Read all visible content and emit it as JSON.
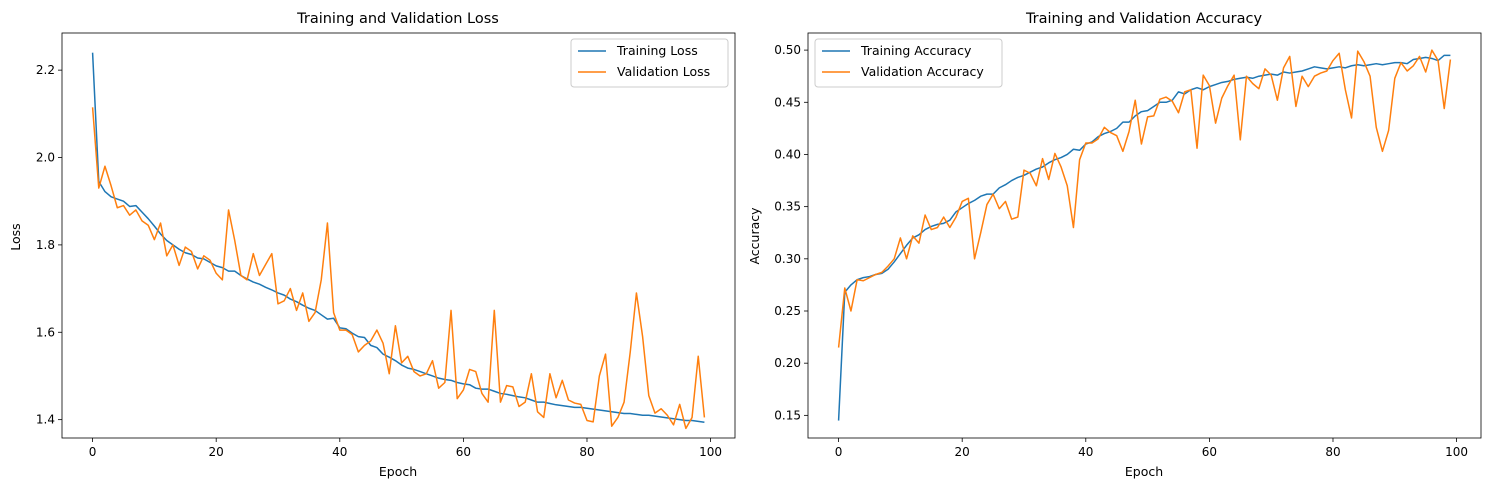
{
  "chart_data": [
    {
      "type": "line",
      "title": "Training and Validation Loss",
      "xlabel": "Epoch",
      "ylabel": "Loss",
      "xlim": [
        -4.95,
        103.95
      ],
      "ylim": [
        1.358,
        2.285
      ],
      "xticks": [
        0,
        20,
        40,
        60,
        80,
        100
      ],
      "yticks": [
        1.4,
        1.6,
        1.8,
        2.0,
        2.2
      ],
      "ytick_format": 1,
      "grid": false,
      "legend": "top-right",
      "series": [
        {
          "name": "Training Loss",
          "color": "#1f77b4",
          "values": [
            2.24,
            1.945,
            1.922,
            1.91,
            1.905,
            1.9,
            1.888,
            1.89,
            1.875,
            1.86,
            1.843,
            1.825,
            1.81,
            1.8,
            1.79,
            1.782,
            1.778,
            1.77,
            1.768,
            1.76,
            1.752,
            1.748,
            1.74,
            1.74,
            1.73,
            1.722,
            1.715,
            1.71,
            1.703,
            1.697,
            1.69,
            1.685,
            1.676,
            1.67,
            1.662,
            1.655,
            1.65,
            1.64,
            1.63,
            1.632,
            1.61,
            1.608,
            1.598,
            1.59,
            1.588,
            1.57,
            1.565,
            1.55,
            1.543,
            1.535,
            1.525,
            1.518,
            1.515,
            1.51,
            1.505,
            1.5,
            1.495,
            1.492,
            1.49,
            1.485,
            1.482,
            1.48,
            1.472,
            1.47,
            1.47,
            1.465,
            1.46,
            1.458,
            1.455,
            1.452,
            1.45,
            1.445,
            1.44,
            1.44,
            1.437,
            1.434,
            1.432,
            1.43,
            1.428,
            1.428,
            1.426,
            1.424,
            1.422,
            1.42,
            1.418,
            1.416,
            1.414,
            1.414,
            1.412,
            1.41,
            1.41,
            1.408,
            1.406,
            1.404,
            1.402,
            1.4,
            1.398,
            1.398,
            1.396,
            1.394
          ]
        },
        {
          "name": "Validation Loss",
          "color": "#ff7f0e",
          "values": [
            2.115,
            1.93,
            1.98,
            1.935,
            1.885,
            1.89,
            1.868,
            1.88,
            1.855,
            1.845,
            1.812,
            1.85,
            1.775,
            1.8,
            1.753,
            1.795,
            1.785,
            1.745,
            1.775,
            1.765,
            1.735,
            1.72,
            1.88,
            1.81,
            1.73,
            1.72,
            1.78,
            1.73,
            1.755,
            1.78,
            1.665,
            1.672,
            1.7,
            1.65,
            1.69,
            1.625,
            1.645,
            1.72,
            1.85,
            1.645,
            1.605,
            1.605,
            1.595,
            1.555,
            1.57,
            1.58,
            1.605,
            1.575,
            1.505,
            1.615,
            1.53,
            1.545,
            1.51,
            1.5,
            1.505,
            1.535,
            1.472,
            1.485,
            1.65,
            1.448,
            1.468,
            1.515,
            1.51,
            1.46,
            1.44,
            1.65,
            1.44,
            1.478,
            1.475,
            1.43,
            1.44,
            1.505,
            1.418,
            1.405,
            1.505,
            1.45,
            1.49,
            1.445,
            1.438,
            1.435,
            1.398,
            1.395,
            1.5,
            1.55,
            1.385,
            1.405,
            1.44,
            1.555,
            1.69,
            1.59,
            1.455,
            1.415,
            1.425,
            1.41,
            1.388,
            1.435,
            1.38,
            1.405,
            1.545,
            1.405
          ]
        }
      ]
    },
    {
      "type": "line",
      "title": "Training and Validation Accuracy",
      "xlabel": "Epoch",
      "ylabel": "Accuracy",
      "xlim": [
        -4.95,
        103.95
      ],
      "ylim": [
        0.1283,
        0.5164
      ],
      "xticks": [
        0,
        20,
        40,
        60,
        80,
        100
      ],
      "yticks": [
        0.15,
        0.2,
        0.25,
        0.3,
        0.35,
        0.4,
        0.45,
        0.5
      ],
      "ytick_format": 2,
      "grid": false,
      "legend": "top-left",
      "series": [
        {
          "name": "Training Accuracy",
          "color": "#1f77b4",
          "values": [
            0.145,
            0.268,
            0.275,
            0.28,
            0.282,
            0.283,
            0.285,
            0.286,
            0.29,
            0.297,
            0.305,
            0.313,
            0.32,
            0.323,
            0.328,
            0.331,
            0.333,
            0.334,
            0.337,
            0.345,
            0.349,
            0.353,
            0.356,
            0.36,
            0.362,
            0.362,
            0.368,
            0.371,
            0.375,
            0.378,
            0.38,
            0.383,
            0.386,
            0.388,
            0.392,
            0.395,
            0.397,
            0.4,
            0.405,
            0.404,
            0.41,
            0.412,
            0.417,
            0.42,
            0.422,
            0.425,
            0.431,
            0.431,
            0.437,
            0.441,
            0.442,
            0.446,
            0.45,
            0.45,
            0.452,
            0.46,
            0.458,
            0.462,
            0.464,
            0.462,
            0.465,
            0.467,
            0.469,
            0.47,
            0.472,
            0.473,
            0.474,
            0.473,
            0.475,
            0.476,
            0.477,
            0.476,
            0.479,
            0.478,
            0.479,
            0.48,
            0.482,
            0.484,
            0.483,
            0.482,
            0.483,
            0.484,
            0.483,
            0.485,
            0.486,
            0.485,
            0.486,
            0.487,
            0.486,
            0.487,
            0.488,
            0.488,
            0.487,
            0.491,
            0.492,
            0.493,
            0.492,
            0.49,
            0.495,
            0.495
          ]
        },
        {
          "name": "Validation Accuracy",
          "color": "#ff7f0e",
          "values": [
            0.215,
            0.272,
            0.25,
            0.28,
            0.279,
            0.282,
            0.285,
            0.287,
            0.293,
            0.3,
            0.32,
            0.3,
            0.322,
            0.315,
            0.342,
            0.328,
            0.33,
            0.34,
            0.33,
            0.34,
            0.355,
            0.358,
            0.3,
            0.325,
            0.352,
            0.362,
            0.348,
            0.355,
            0.338,
            0.34,
            0.385,
            0.382,
            0.37,
            0.396,
            0.376,
            0.401,
            0.388,
            0.37,
            0.33,
            0.395,
            0.411,
            0.411,
            0.415,
            0.426,
            0.421,
            0.418,
            0.403,
            0.422,
            0.452,
            0.41,
            0.436,
            0.437,
            0.453,
            0.455,
            0.451,
            0.44,
            0.46,
            0.462,
            0.406,
            0.476,
            0.466,
            0.43,
            0.454,
            0.466,
            0.476,
            0.414,
            0.475,
            0.468,
            0.463,
            0.482,
            0.476,
            0.452,
            0.483,
            0.494,
            0.446,
            0.475,
            0.465,
            0.475,
            0.478,
            0.48,
            0.49,
            0.497,
            0.462,
            0.435,
            0.499,
            0.489,
            0.475,
            0.426,
            0.403,
            0.423,
            0.473,
            0.488,
            0.48,
            0.485,
            0.494,
            0.479,
            0.5,
            0.49,
            0.444,
            0.491
          ]
        }
      ]
    }
  ]
}
